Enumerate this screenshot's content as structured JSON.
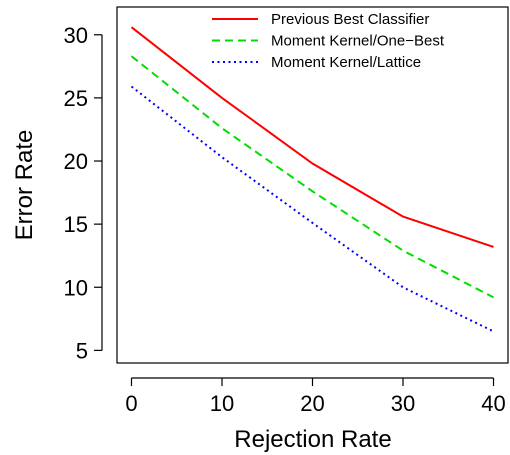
{
  "chart_data": {
    "type": "line",
    "xlabel": "Rejection Rate",
    "ylabel": "Error Rate",
    "x": [
      0,
      10,
      20,
      30,
      40
    ],
    "xticks": [
      0,
      10,
      20,
      30,
      40
    ],
    "yticks": [
      5,
      10,
      15,
      20,
      25,
      30
    ],
    "xlim": [
      -1.6,
      41.6
    ],
    "ylim": [
      4.0,
      32.2
    ],
    "grid": false,
    "legend_position": "top-right",
    "series": [
      {
        "name": "Previous Best Classifier",
        "values": [
          30.6,
          25.0,
          19.8,
          15.6,
          13.2
        ],
        "color": "#ff0000",
        "dash": "solid"
      },
      {
        "name": "Moment Kernel/One−Best",
        "values": [
          28.3,
          22.6,
          17.6,
          12.9,
          9.2
        ],
        "color": "#00dd00",
        "dash": "dashed"
      },
      {
        "name": "Moment Kernel/Lattice",
        "values": [
          25.9,
          20.3,
          15.1,
          10.0,
          6.5
        ],
        "color": "#0000ff",
        "dash": "dotted"
      }
    ]
  }
}
